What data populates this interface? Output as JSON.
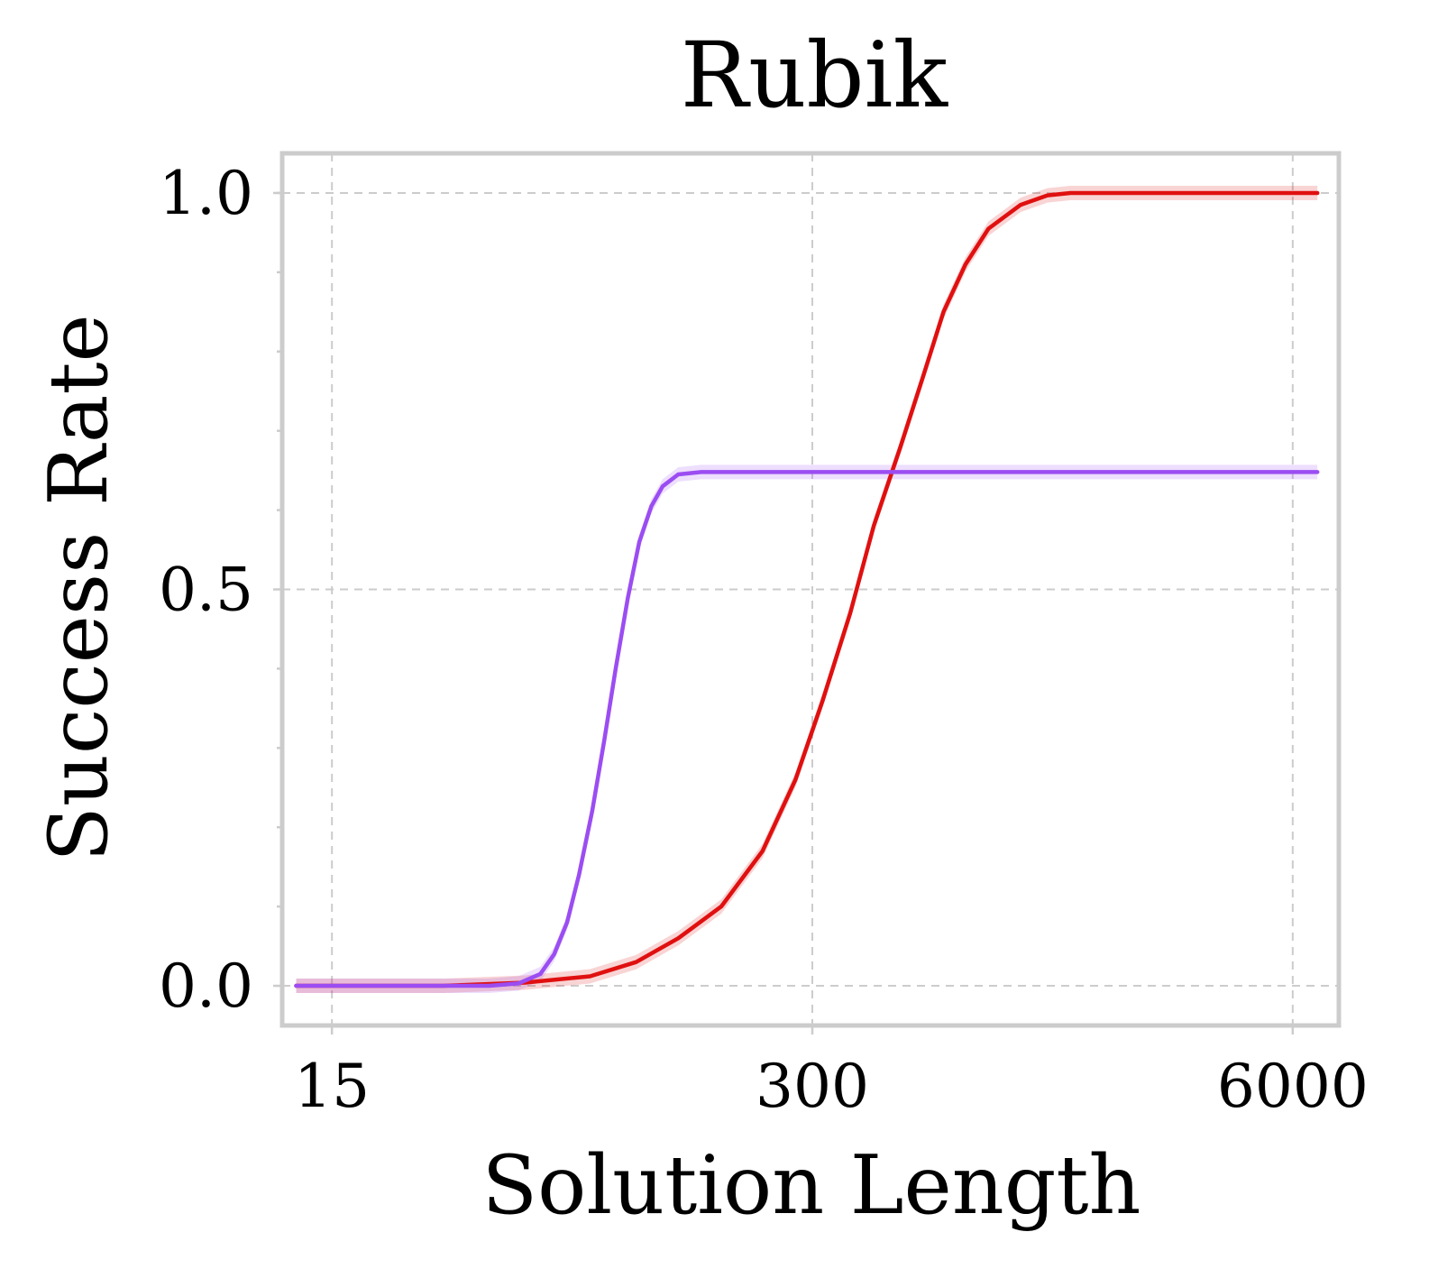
{
  "chart_data": {
    "type": "line",
    "title": "Rubik",
    "xlabel": "Solution Length",
    "ylabel": "Success Rate",
    "xscale": "log",
    "xlim": [
      11,
      8000
    ],
    "ylim": [
      -0.05,
      1.05
    ],
    "xticks": [
      15,
      300,
      6000
    ],
    "xtick_labels": [
      "15",
      "300",
      "6000"
    ],
    "yticks": [
      0.0,
      0.5,
      1.0
    ],
    "ytick_labels": [
      "0.0",
      "0.5",
      "1.0"
    ],
    "grid": true,
    "series": [
      {
        "color": "#e01010",
        "band": true,
        "points": [
          [
            12,
            0.0
          ],
          [
            30,
            0.0
          ],
          [
            50,
            0.004
          ],
          [
            75,
            0.012
          ],
          [
            100,
            0.03
          ],
          [
            130,
            0.06
          ],
          [
            170,
            0.1
          ],
          [
            220,
            0.17
          ],
          [
            270,
            0.26
          ],
          [
            320,
            0.36
          ],
          [
            380,
            0.47
          ],
          [
            440,
            0.58
          ],
          [
            520,
            0.68
          ],
          [
            600,
            0.77
          ],
          [
            680,
            0.85
          ],
          [
            780,
            0.91
          ],
          [
            900,
            0.955
          ],
          [
            1100,
            0.985
          ],
          [
            1300,
            0.997
          ],
          [
            1500,
            1.0
          ],
          [
            7000,
            1.0
          ]
        ]
      },
      {
        "color": "#9b4df2",
        "band": true,
        "points": [
          [
            12,
            0.0
          ],
          [
            40,
            0.0
          ],
          [
            48,
            0.003
          ],
          [
            55,
            0.015
          ],
          [
            60,
            0.04
          ],
          [
            65,
            0.08
          ],
          [
            70,
            0.14
          ],
          [
            76,
            0.22
          ],
          [
            82,
            0.31
          ],
          [
            88,
            0.4
          ],
          [
            95,
            0.49
          ],
          [
            102,
            0.56
          ],
          [
            110,
            0.605
          ],
          [
            118,
            0.63
          ],
          [
            130,
            0.645
          ],
          [
            150,
            0.648
          ],
          [
            7000,
            0.648
          ]
        ]
      }
    ]
  }
}
